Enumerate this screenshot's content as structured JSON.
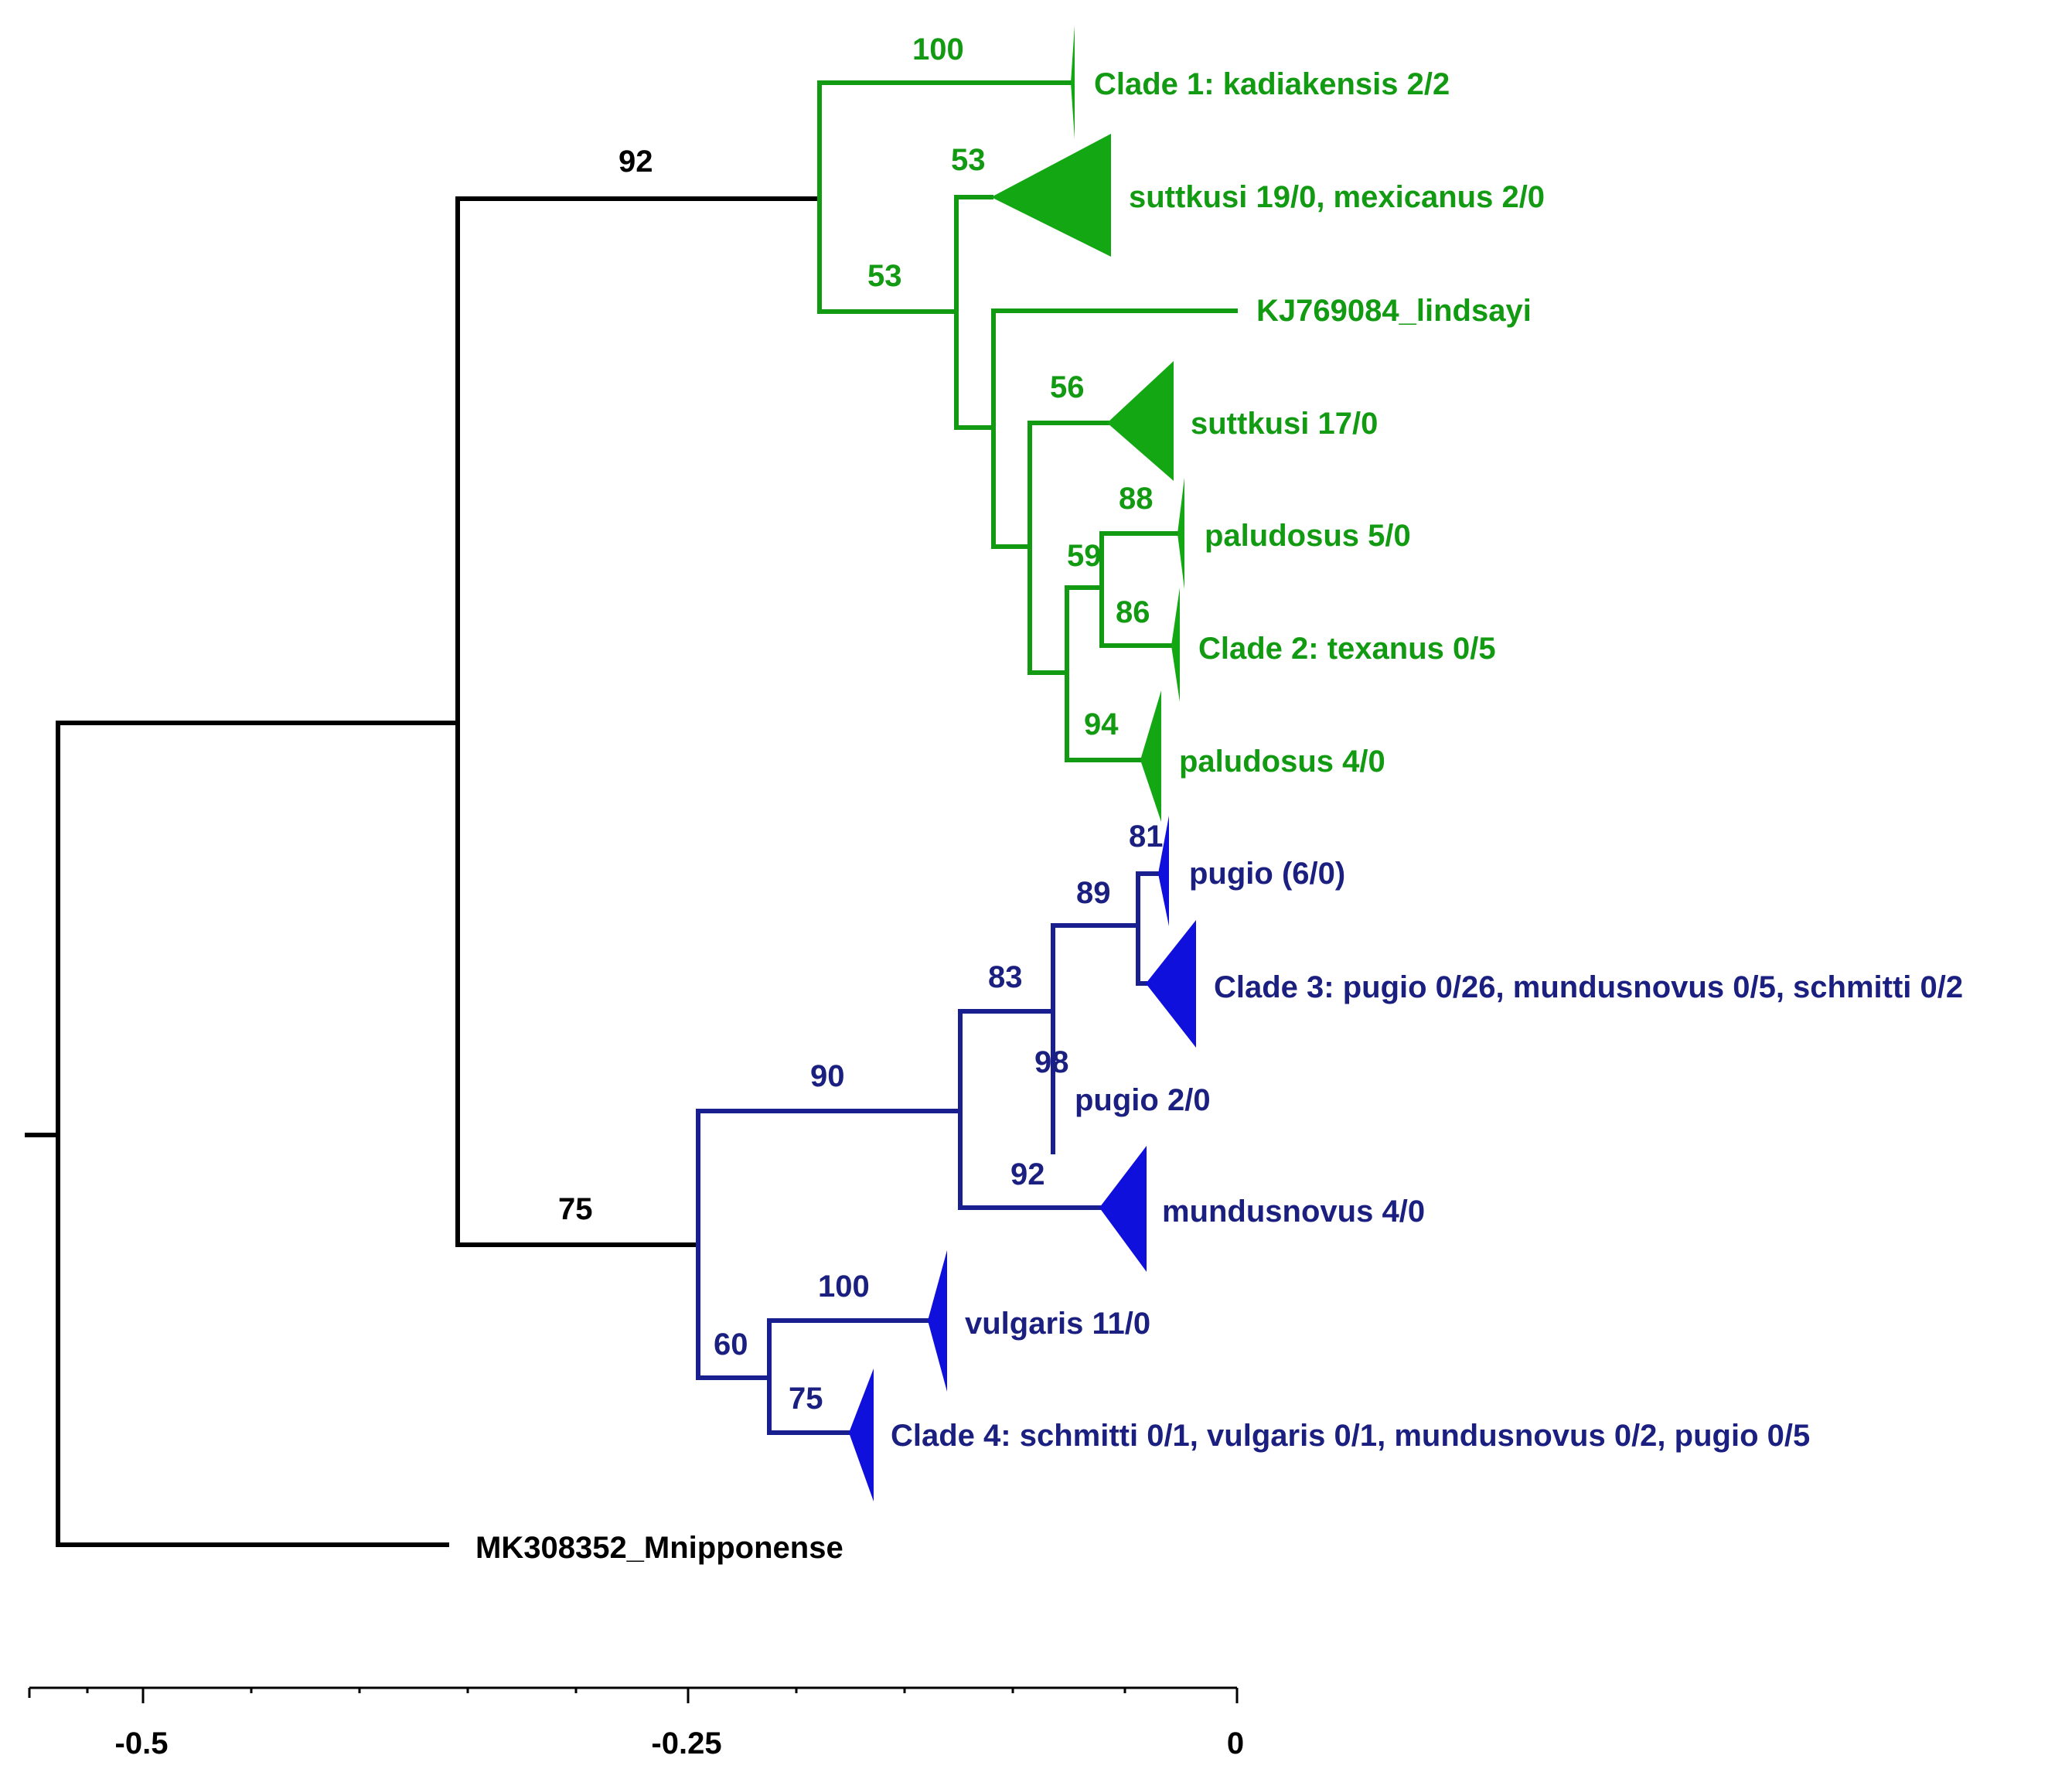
{
  "colors": {
    "root": "#000000",
    "green": "#129a12",
    "green_fill": "#13a813",
    "blue_branch": "#1a1f8f",
    "blue_fill": "#1010dd",
    "blue_text": "#1a1f80",
    "axis": "#000000"
  },
  "taxa": {
    "clade1": "Clade 1: kadiakensis 2/2",
    "suttkusi_mexicanus": "suttkusi 19/0, mexicanus 2/0",
    "lindsayi": "KJ769084_lindsayi",
    "suttkusi17": "suttkusi 17/0",
    "paludosus5": "paludosus 5/0",
    "clade2": "Clade 2: texanus 0/5",
    "paludosus4": "paludosus 4/0",
    "pugio6": "pugio (6/0)",
    "clade3": "Clade 3: pugio 0/26, mundusnovus 0/5, schmitti 0/2",
    "pugio2": "pugio 2/0",
    "mundusnovus4": "mundusnovus 4/0",
    "vulgaris11": "vulgaris 11/0",
    "clade4": "Clade 4: schmitti 0/1, vulgaris 0/1, mundusnovus 0/2, pugio 0/5",
    "outgroup": "MK308352_Mnipponense"
  },
  "support": {
    "n92_root": "92",
    "n100_clade1": "100",
    "n53_suttkusi": "53",
    "n53_inner": "53",
    "n56": "56",
    "n88": "88",
    "n59": "59",
    "n86": "86",
    "n94": "94",
    "n81": "81",
    "n89": "89",
    "n83": "83",
    "n98": "98",
    "n90": "90",
    "n92_blue": "92",
    "n75_root": "75",
    "n100_vulgaris": "100",
    "n60": "60",
    "n75_clade4": "75"
  },
  "scale_axis": {
    "ticks": [
      "-0.5",
      "-0.25",
      "0"
    ]
  }
}
